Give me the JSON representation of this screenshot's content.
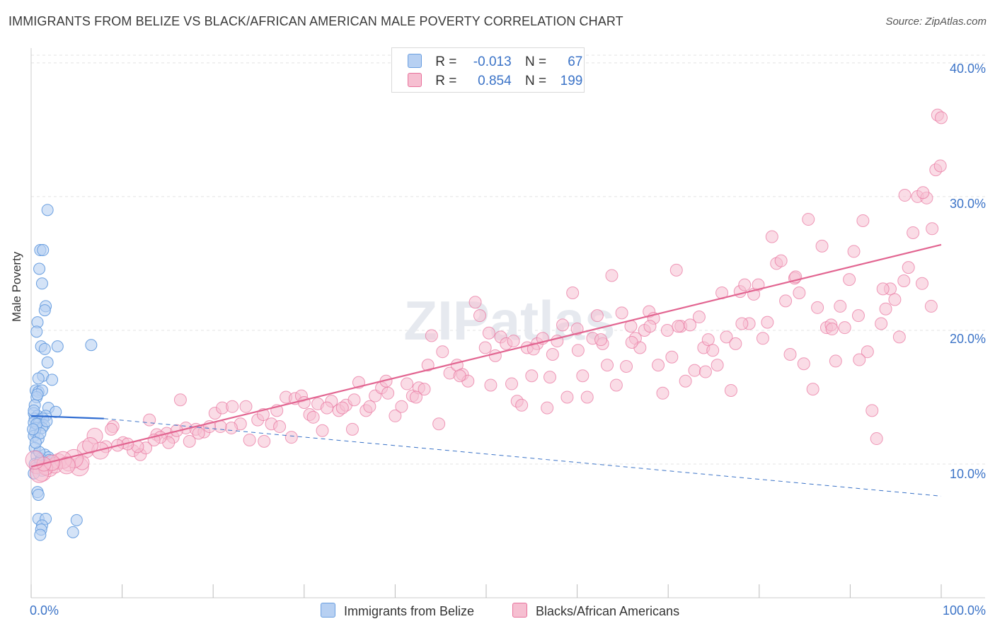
{
  "title": "IMMIGRANTS FROM BELIZE VS BLACK/AFRICAN AMERICAN MALE POVERTY CORRELATION CHART",
  "source": "Source: ZipAtlas.com",
  "colors": {
    "blue": "#6a9fe0",
    "blue_fill": "#b7d0f2",
    "pink": "#e8729c",
    "pink_fill": "#f6bfd1",
    "axis_text": "#3b73c7"
  },
  "legend": {
    "rows": [
      {
        "r_label": "R =",
        "r_value": "-0.013",
        "n_label": "N =",
        "n_value": "67"
      },
      {
        "r_label": "R =",
        "r_value": "0.854",
        "n_label": "N =",
        "n_value": "199"
      }
    ]
  },
  "bottom_legend": [
    "Immigrants from Belize",
    "Blacks/African Americans"
  ],
  "watermark": "ZIPatlas",
  "chart_data": {
    "type": "scatter",
    "title": "IMMIGRANTS FROM BELIZE VS BLACK/AFRICAN AMERICAN MALE POVERTY CORRELATION CHART",
    "xlabel": "",
    "ylabel": "Male Poverty",
    "xlim": [
      0,
      100
    ],
    "ylim": [
      0,
      41
    ],
    "x_tick_labels": [
      "0.0%",
      "100.0%"
    ],
    "y_ticks": [
      10,
      20,
      30,
      40
    ],
    "y_tick_labels": [
      "10.0%",
      "20.0%",
      "30.0%",
      "40.0%"
    ],
    "grid": true,
    "series": [
      {
        "name": "Immigrants from Belize",
        "r": -0.013,
        "n": 67,
        "trend_solid": [
          [
            0,
            13.6
          ],
          [
            8,
            13.4
          ]
        ],
        "trend_dashed": [
          [
            8,
            13.4
          ],
          [
            100,
            7.6
          ]
        ],
        "points": [
          [
            1.8,
            29.0
          ],
          [
            1.0,
            26.0
          ],
          [
            1.3,
            26.0
          ],
          [
            0.9,
            24.6
          ],
          [
            1.2,
            23.5
          ],
          [
            1.6,
            21.8
          ],
          [
            1.5,
            21.5
          ],
          [
            0.7,
            20.6
          ],
          [
            0.6,
            19.9
          ],
          [
            1.1,
            18.8
          ],
          [
            1.5,
            18.6
          ],
          [
            2.9,
            18.8
          ],
          [
            6.6,
            18.9
          ],
          [
            1.8,
            17.6
          ],
          [
            1.3,
            16.6
          ],
          [
            0.8,
            16.4
          ],
          [
            2.3,
            16.3
          ],
          [
            0.5,
            15.5
          ],
          [
            0.8,
            15.4
          ],
          [
            1.2,
            15.5
          ],
          [
            0.6,
            15.0
          ],
          [
            0.4,
            14.4
          ],
          [
            1.9,
            14.2
          ],
          [
            2.7,
            13.9
          ],
          [
            0.3,
            13.8
          ],
          [
            0.7,
            13.6
          ],
          [
            1.6,
            13.6
          ],
          [
            0.4,
            13.4
          ],
          [
            0.9,
            13.3
          ],
          [
            1.3,
            13.4
          ],
          [
            0.3,
            13.1
          ],
          [
            0.8,
            13.0
          ],
          [
            1.4,
            12.9
          ],
          [
            0.5,
            12.7
          ],
          [
            1.2,
            12.7
          ],
          [
            0.4,
            12.4
          ],
          [
            0.3,
            12.1
          ],
          [
            0.8,
            11.9
          ],
          [
            0.4,
            11.2
          ],
          [
            1.5,
            10.7
          ],
          [
            0.6,
            10.6
          ],
          [
            1.1,
            10.4
          ],
          [
            1.9,
            10.5
          ],
          [
            0.4,
            10.0
          ],
          [
            1.0,
            10.2
          ],
          [
            0.5,
            9.7
          ],
          [
            1.2,
            9.5
          ],
          [
            0.3,
            9.3
          ],
          [
            0.7,
            7.9
          ],
          [
            0.8,
            7.7
          ],
          [
            0.8,
            5.9
          ],
          [
            1.6,
            5.9
          ],
          [
            5.0,
            5.8
          ],
          [
            1.2,
            5.4
          ],
          [
            1.1,
            5.1
          ],
          [
            1.0,
            4.7
          ],
          [
            4.6,
            4.9
          ],
          [
            0.6,
            13.0
          ],
          [
            1.0,
            12.3
          ],
          [
            0.3,
            14.0
          ],
          [
            1.7,
            13.2
          ],
          [
            0.9,
            10.9
          ],
          [
            0.5,
            11.6
          ],
          [
            1.4,
            9.9
          ],
          [
            0.2,
            12.6
          ],
          [
            2.0,
            10.3
          ],
          [
            0.7,
            15.2
          ]
        ]
      },
      {
        "name": "Blacks/African Americans",
        "r": 0.854,
        "n": 199,
        "trend": [
          [
            0,
            9.8
          ],
          [
            100,
            26.4
          ]
        ],
        "points": [
          [
            0.6,
            9.8
          ],
          [
            1.2,
            9.4
          ],
          [
            2.0,
            9.7
          ],
          [
            3.0,
            10.2
          ],
          [
            4.1,
            10.0
          ],
          [
            5.3,
            9.8
          ],
          [
            6.0,
            11.1
          ],
          [
            7.0,
            12.1
          ],
          [
            8.2,
            11.3
          ],
          [
            9.0,
            12.8
          ],
          [
            10.1,
            11.6
          ],
          [
            11.2,
            11.0
          ],
          [
            12.0,
            10.7
          ],
          [
            13.0,
            13.3
          ],
          [
            13.8,
            12.2
          ],
          [
            14.9,
            12.3
          ],
          [
            15.6,
            12.0
          ],
          [
            16.4,
            14.8
          ],
          [
            17.0,
            12.7
          ],
          [
            18.1,
            12.6
          ],
          [
            19.0,
            12.4
          ],
          [
            20.2,
            13.8
          ],
          [
            21.0,
            14.2
          ],
          [
            22.1,
            14.3
          ],
          [
            23.0,
            13.0
          ],
          [
            24.0,
            11.8
          ],
          [
            24.9,
            13.3
          ],
          [
            25.6,
            11.7
          ],
          [
            26.4,
            13.0
          ],
          [
            27.3,
            12.8
          ],
          [
            28.0,
            15.0
          ],
          [
            29.0,
            14.9
          ],
          [
            29.7,
            15.1
          ],
          [
            30.6,
            13.7
          ],
          [
            31.5,
            14.5
          ],
          [
            32.0,
            12.5
          ],
          [
            33.0,
            14.7
          ],
          [
            33.8,
            14.0
          ],
          [
            34.6,
            14.4
          ],
          [
            35.3,
            12.6
          ],
          [
            36.0,
            16.1
          ],
          [
            36.8,
            14.0
          ],
          [
            37.8,
            15.1
          ],
          [
            38.5,
            15.7
          ],
          [
            39.2,
            15.3
          ],
          [
            40.0,
            13.6
          ],
          [
            40.7,
            14.3
          ],
          [
            41.3,
            16.0
          ],
          [
            41.9,
            15.1
          ],
          [
            42.6,
            15.7
          ],
          [
            43.2,
            15.6
          ],
          [
            44.0,
            19.6
          ],
          [
            44.8,
            13.0
          ],
          [
            45.2,
            18.4
          ],
          [
            46.0,
            16.8
          ],
          [
            46.8,
            17.4
          ],
          [
            47.4,
            16.7
          ],
          [
            48.0,
            16.2
          ],
          [
            48.8,
            22.1
          ],
          [
            49.3,
            21.1
          ],
          [
            49.9,
            18.7
          ],
          [
            50.5,
            15.9
          ],
          [
            51.0,
            18.1
          ],
          [
            51.6,
            19.5
          ],
          [
            52.2,
            19.0
          ],
          [
            52.8,
            16.0
          ],
          [
            53.4,
            14.7
          ],
          [
            53.9,
            14.4
          ],
          [
            54.5,
            18.7
          ],
          [
            55.0,
            16.6
          ],
          [
            55.6,
            19.0
          ],
          [
            56.2,
            19.4
          ],
          [
            56.7,
            14.2
          ],
          [
            57.3,
            18.2
          ],
          [
            57.8,
            19.2
          ],
          [
            58.4,
            20.4
          ],
          [
            58.9,
            15.0
          ],
          [
            59.5,
            22.8
          ],
          [
            60.1,
            18.5
          ],
          [
            60.6,
            16.6
          ],
          [
            61.1,
            15.0
          ],
          [
            61.7,
            19.4
          ],
          [
            62.2,
            21.1
          ],
          [
            62.8,
            19.0
          ],
          [
            63.3,
            17.4
          ],
          [
            63.8,
            24.1
          ],
          [
            64.3,
            15.9
          ],
          [
            64.9,
            21.3
          ],
          [
            65.4,
            17.3
          ],
          [
            65.9,
            20.3
          ],
          [
            66.4,
            19.4
          ],
          [
            66.9,
            18.7
          ],
          [
            67.4,
            20.0
          ],
          [
            67.9,
            21.4
          ],
          [
            68.4,
            20.9
          ],
          [
            68.9,
            17.4
          ],
          [
            69.4,
            15.3
          ],
          [
            69.9,
            20.0
          ],
          [
            70.4,
            18.0
          ],
          [
            70.9,
            24.5
          ],
          [
            71.4,
            20.3
          ],
          [
            71.9,
            16.2
          ],
          [
            72.4,
            20.4
          ],
          [
            72.9,
            17.0
          ],
          [
            73.4,
            21.0
          ],
          [
            73.9,
            18.7
          ],
          [
            74.4,
            19.3
          ],
          [
            74.9,
            18.5
          ],
          [
            75.4,
            17.4
          ],
          [
            75.9,
            22.8
          ],
          [
            76.4,
            19.5
          ],
          [
            76.9,
            15.5
          ],
          [
            77.4,
            19.0
          ],
          [
            77.9,
            22.9
          ],
          [
            78.4,
            23.4
          ],
          [
            78.9,
            20.5
          ],
          [
            79.4,
            22.7
          ],
          [
            79.9,
            23.4
          ],
          [
            80.4,
            19.4
          ],
          [
            80.9,
            20.6
          ],
          [
            81.4,
            27.0
          ],
          [
            81.9,
            25.0
          ],
          [
            82.4,
            25.2
          ],
          [
            82.9,
            22.2
          ],
          [
            83.4,
            18.2
          ],
          [
            83.9,
            23.9
          ],
          [
            84.4,
            22.8
          ],
          [
            84.9,
            17.5
          ],
          [
            85.4,
            28.3
          ],
          [
            85.9,
            15.6
          ],
          [
            86.4,
            21.7
          ],
          [
            86.9,
            26.3
          ],
          [
            87.4,
            20.2
          ],
          [
            87.9,
            20.4
          ],
          [
            88.4,
            17.7
          ],
          [
            88.9,
            21.8
          ],
          [
            89.4,
            20.2
          ],
          [
            89.9,
            23.8
          ],
          [
            90.4,
            25.9
          ],
          [
            90.9,
            21.1
          ],
          [
            91.4,
            28.2
          ],
          [
            91.9,
            18.4
          ],
          [
            92.4,
            14.0
          ],
          [
            92.9,
            11.9
          ],
          [
            93.4,
            20.5
          ],
          [
            93.9,
            21.6
          ],
          [
            94.4,
            23.1
          ],
          [
            94.9,
            22.3
          ],
          [
            95.4,
            19.5
          ],
          [
            95.9,
            23.7
          ],
          [
            96.4,
            24.7
          ],
          [
            96.9,
            27.3
          ],
          [
            97.4,
            30.0
          ],
          [
            97.9,
            23.5
          ],
          [
            98.4,
            29.9
          ],
          [
            98.9,
            21.8
          ],
          [
            99.4,
            32.0
          ],
          [
            99.9,
            32.3
          ],
          [
            98.0,
            30.3
          ],
          [
            99.0,
            27.6
          ],
          [
            99.6,
            36.1
          ],
          [
            100.0,
            35.9
          ],
          [
            96.0,
            30.1
          ],
          [
            93.6,
            23.1
          ],
          [
            91.0,
            17.8
          ],
          [
            88.0,
            20.1
          ],
          [
            84.0,
            24.0
          ],
          [
            78.1,
            20.5
          ],
          [
            74.1,
            16.9
          ],
          [
            71.1,
            20.3
          ],
          [
            68.0,
            20.3
          ],
          [
            66.0,
            19.1
          ],
          [
            62.6,
            19.3
          ],
          [
            60.0,
            20.1
          ],
          [
            57.0,
            16.5
          ],
          [
            55.2,
            18.6
          ],
          [
            53.0,
            19.2
          ],
          [
            50.3,
            19.8
          ],
          [
            47.1,
            16.6
          ],
          [
            43.6,
            17.4
          ],
          [
            42.3,
            15.0
          ],
          [
            39.0,
            16.2
          ],
          [
            37.2,
            14.3
          ],
          [
            35.5,
            14.8
          ],
          [
            34.2,
            14.2
          ],
          [
            32.5,
            14.2
          ],
          [
            31.0,
            13.5
          ],
          [
            30.0,
            14.6
          ],
          [
            28.6,
            12.0
          ],
          [
            27.0,
            14.0
          ],
          [
            25.5,
            13.7
          ],
          [
            23.6,
            14.3
          ],
          [
            22.0,
            12.7
          ],
          [
            20.8,
            12.8
          ],
          [
            19.6,
            12.8
          ],
          [
            18.4,
            12.3
          ],
          [
            17.4,
            11.7
          ],
          [
            16.0,
            12.5
          ],
          [
            15.1,
            11.6
          ],
          [
            14.2,
            12.0
          ],
          [
            13.5,
            11.8
          ],
          [
            12.6,
            11.2
          ],
          [
            11.7,
            11.3
          ],
          [
            10.6,
            11.5
          ],
          [
            9.5,
            11.4
          ],
          [
            8.8,
            12.6
          ],
          [
            7.6,
            11.0
          ],
          [
            6.5,
            11.4
          ],
          [
            5.6,
            10.1
          ],
          [
            4.7,
            10.4
          ],
          [
            3.5,
            10.3
          ],
          [
            2.6,
            9.9
          ],
          [
            1.6,
            9.7
          ],
          [
            0.9,
            9.3
          ],
          [
            3.9,
            9.9
          ],
          [
            2.3,
            10.1
          ],
          [
            1.4,
            10.0
          ],
          [
            0.4,
            10.3
          ]
        ]
      }
    ]
  }
}
